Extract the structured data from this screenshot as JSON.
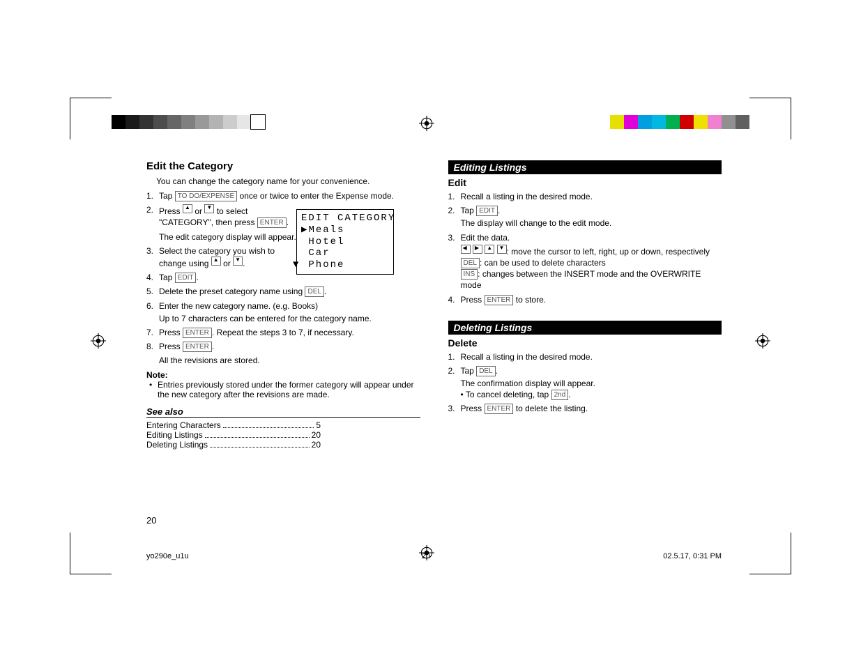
{
  "grayscale_bar": [
    "#000000",
    "#1a1a1a",
    "#333333",
    "#4d4d4d",
    "#666666",
    "#808080",
    "#999999",
    "#b3b3b3",
    "#cccccc",
    "#e6e6e6",
    "#ffffff"
  ],
  "color_bar": [
    "#e5e000",
    "#e000d8",
    "#00a0e0",
    "#00b8e0",
    "#00b050",
    "#d00000",
    "#f0e000",
    "#f080d0",
    "#909090",
    "#606060"
  ],
  "left": {
    "title": "Edit the Category",
    "intro": "You can change the category name for your convenience.",
    "steps": {
      "s1_a": "Tap ",
      "s1_key": "TO DO/EXPENSE",
      "s1_b": " once or twice to enter the Expense mode.",
      "s2_a": "Press ",
      "s2_b": " or ",
      "s2_c": " to select \"CATEGORY\", then press ",
      "s2_key": "ENTER",
      "s2_d": ".",
      "s2_sub": "The edit category display will appear.",
      "s3_a": "Select the category you wish to change using ",
      "s3_b": " or ",
      "s3_c": ".",
      "s4_a": "Tap ",
      "s4_key": "EDIT",
      "s4_b": ".",
      "s5_a": "Delete the preset category name using ",
      "s5_key": "DEL",
      "s5_b": ".",
      "s6": "Enter the new category name. (e.g. Books)",
      "s6_sub": "Up to 7 characters can be entered for the category name.",
      "s7_a": "Press ",
      "s7_key": "ENTER",
      "s7_b": ". Repeat the steps 3 to 7, if necessary.",
      "s8_a": "Press ",
      "s8_key": "ENTER",
      "s8_b": ".",
      "s8_sub": "All the revisions are stored."
    },
    "note_h": "Note:",
    "note": "Entries previously stored under the former category will appear under the new category after the revisions are made.",
    "seealso_h": "See also",
    "seealso": [
      {
        "label": "Entering Characters",
        "page": "5"
      },
      {
        "label": "Editing Listings",
        "page": "20"
      },
      {
        "label": "Deleting Listings",
        "page": "20"
      }
    ],
    "lcd": {
      "title": "EDIT CATEGORY",
      "rows": [
        "Meals",
        "Hotel",
        "Car",
        "Phone"
      ]
    }
  },
  "right": {
    "bar1": "Editing Listings",
    "edit_h": "Edit",
    "edit": {
      "s1": "Recall a listing in the desired mode.",
      "s2_a": "Tap ",
      "s2_key": "EDIT",
      "s2_b": ".",
      "s2_sub": "The display will change to the edit mode.",
      "s3": "Edit the data.",
      "s3_line1_b": ": move the cursor to left, right, up or down, respectively",
      "s3_line2_key": "DEL",
      "s3_line2_b": ": can be used to delete characters",
      "s3_line3_key": "INS",
      "s3_line3_b": ": changes between the INSERT mode and the OVERWRITE mode",
      "s4_a": "Press ",
      "s4_key": "ENTER",
      "s4_b": " to store."
    },
    "bar2": "Deleting Listings",
    "del_h": "Delete",
    "del": {
      "s1": "Recall a listing in the desired mode.",
      "s2_a": "Tap ",
      "s2_key": "DEL",
      "s2_b": ".",
      "s2_sub1": "The confirmation display will appear.",
      "s2_sub2_a": "• To cancel deleting, tap ",
      "s2_sub2_key": "2nd",
      "s2_sub2_b": ".",
      "s3_a": "Press ",
      "s3_key": "ENTER",
      "s3_b": " to delete the listing."
    }
  },
  "pagenum": "20",
  "footer": {
    "file": "yo290e_u1u",
    "page": "20",
    "ts": "02.5.17, 0:31 PM"
  }
}
